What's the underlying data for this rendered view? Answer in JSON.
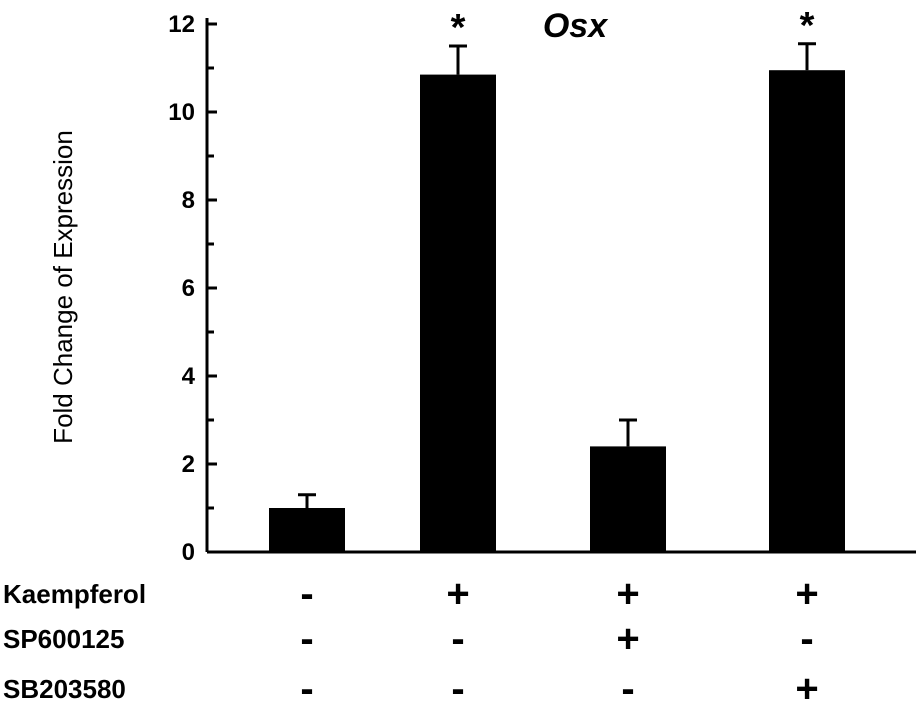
{
  "chart_data": {
    "type": "bar",
    "title": "Osx",
    "ylabel": "Fold Change of  Expression",
    "xlabel": "",
    "ylim": [
      0,
      12
    ],
    "yticks": [
      0,
      2,
      4,
      6,
      8,
      10,
      12
    ],
    "grid": false,
    "values": [
      1.0,
      10.85,
      2.4,
      10.95
    ],
    "errors": [
      0.3,
      0.65,
      0.6,
      0.6
    ],
    "significance": [
      "",
      "*",
      "",
      "*"
    ],
    "bar_color": "#000000",
    "treatments": [
      {
        "name": "Kaempferol",
        "signs": [
          "-",
          "+",
          "+",
          "+"
        ]
      },
      {
        "name": "SP600125",
        "signs": [
          "-",
          "-",
          "+",
          "-"
        ]
      },
      {
        "name": "SB203580",
        "signs": [
          "-",
          "-",
          "-",
          "+"
        ]
      }
    ]
  }
}
